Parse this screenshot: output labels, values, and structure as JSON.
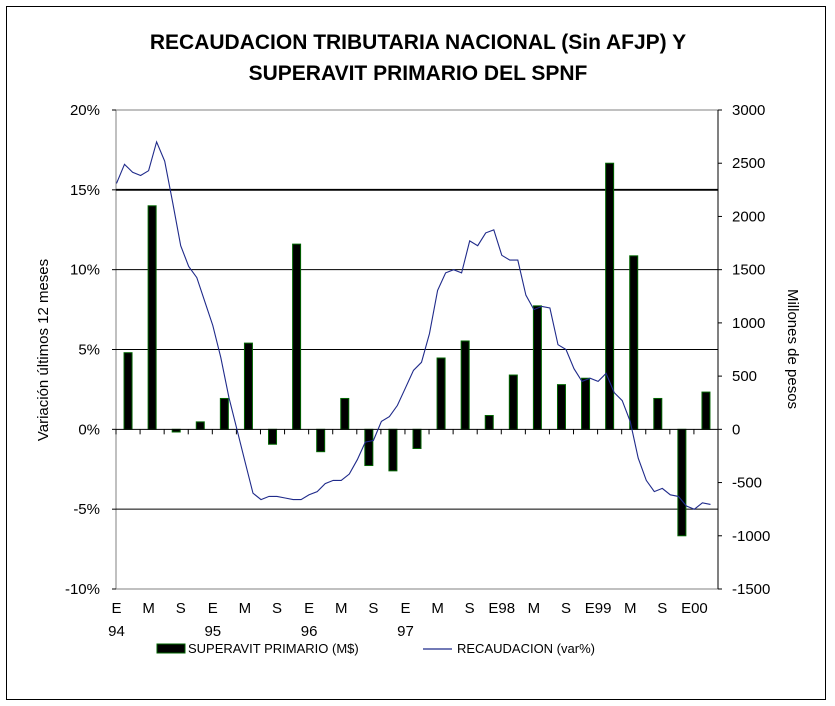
{
  "chart_data": {
    "type": "bar+line",
    "title_lines": [
      "RECAUDACION TRIBUTARIA NACIONAL (Sin AFJP) Y",
      "SUPERAVIT PRIMARIO DEL SPNF"
    ],
    "y_left_label": "Variación últimos 12 meses",
    "y_right_label": "Millones de pesos",
    "y_left_ticks": [
      "20%",
      "15%",
      "10%",
      "5%",
      "0%",
      "-5%",
      "-10%"
    ],
    "y_right_ticks": [
      "3000",
      "2500",
      "2000",
      "1500",
      "1000",
      "500",
      "0",
      "-500",
      "-1000",
      "-1500"
    ],
    "y_left_range": [
      -10,
      20
    ],
    "y_right_range": [
      -1500,
      3000
    ],
    "x_tick_labels": [
      {
        "top": "E",
        "bottom": "94"
      },
      {
        "top": "M",
        "bottom": ""
      },
      {
        "top": "S",
        "bottom": ""
      },
      {
        "top": "E",
        "bottom": "95"
      },
      {
        "top": "M",
        "bottom": ""
      },
      {
        "top": "S",
        "bottom": ""
      },
      {
        "top": "E",
        "bottom": "96"
      },
      {
        "top": "M",
        "bottom": ""
      },
      {
        "top": "S",
        "bottom": ""
      },
      {
        "top": "E",
        "bottom": "97"
      },
      {
        "top": "M",
        "bottom": ""
      },
      {
        "top": "S",
        "bottom": ""
      },
      {
        "top": "E98",
        "bottom": ""
      },
      {
        "top": "M",
        "bottom": ""
      },
      {
        "top": "S",
        "bottom": ""
      },
      {
        "top": "E99",
        "bottom": ""
      },
      {
        "top": "M",
        "bottom": ""
      },
      {
        "top": "S",
        "bottom": ""
      },
      {
        "top": "E00",
        "bottom": ""
      }
    ],
    "gridlines_left_pct": [
      15,
      10,
      5,
      -5
    ],
    "series": [
      {
        "name": "SUPERAVIT PRIMARIO (M$)",
        "kind": "bar",
        "axis": "right",
        "color": "#000000",
        "edge_color": "#006400",
        "quarter_index": [
          0,
          1,
          2,
          3,
          4,
          5,
          6,
          7,
          8,
          9,
          10,
          11,
          12,
          13,
          14,
          15,
          16,
          17,
          18,
          19,
          20,
          21,
          22,
          23,
          24
        ],
        "values": [
          720,
          2100,
          -25,
          70,
          290,
          810,
          -140,
          1740,
          -210,
          290,
          -340,
          -390,
          -180,
          670,
          830,
          130,
          510,
          1160,
          420,
          480,
          2500,
          1630,
          290,
          -1000,
          350
        ]
      },
      {
        "name": "RECAUDACION (var%)",
        "kind": "line",
        "axis": "left",
        "color": "#1f2a8a",
        "month_index": [
          0,
          1,
          2,
          3,
          4,
          5,
          6,
          7,
          8,
          9,
          10,
          11,
          12,
          13,
          14,
          15,
          16,
          17,
          18,
          19,
          20,
          21,
          22,
          23,
          24,
          25,
          26,
          27,
          28,
          29,
          30,
          31,
          32,
          33,
          34,
          35,
          36,
          37,
          38,
          39,
          40,
          41,
          42,
          43,
          44,
          45,
          46,
          47,
          48,
          49,
          50,
          51,
          52,
          53,
          54,
          55,
          56,
          57,
          58,
          59,
          60,
          61,
          62,
          63,
          64,
          65,
          66,
          67,
          68,
          69,
          70,
          71,
          72,
          73,
          74
        ],
        "values": [
          15.4,
          16.6,
          16.1,
          15.9,
          16.2,
          18.0,
          16.8,
          14.2,
          11.5,
          10.2,
          9.5,
          8.0,
          6.5,
          4.5,
          2.0,
          0.0,
          -2.0,
          -4.0,
          -4.4,
          -4.2,
          -4.2,
          -4.3,
          -4.4,
          -4.4,
          -4.1,
          -3.9,
          -3.4,
          -3.2,
          -3.2,
          -2.8,
          -1.9,
          -0.8,
          -0.7,
          0.5,
          0.8,
          1.5,
          2.6,
          3.7,
          4.2,
          6.0,
          8.7,
          9.8,
          10.0,
          9.8,
          11.8,
          11.5,
          12.3,
          12.5,
          10.9,
          10.6,
          10.6,
          8.4,
          7.5,
          7.7,
          7.6,
          5.3,
          5.0,
          3.8,
          3.0,
          3.2,
          3.0,
          3.5,
          2.3,
          1.8,
          0.5,
          -1.8,
          -3.2,
          -3.9,
          -3.7,
          -4.1,
          -4.2,
          -4.8,
          -5.0,
          -4.6,
          -4.7
        ]
      }
    ],
    "legend": {
      "placement": "bottom",
      "entries": [
        {
          "label": "SUPERAVIT PRIMARIO (M$)",
          "kind": "bar"
        },
        {
          "label": "RECAUDACION (var%)",
          "kind": "line"
        }
      ]
    }
  }
}
